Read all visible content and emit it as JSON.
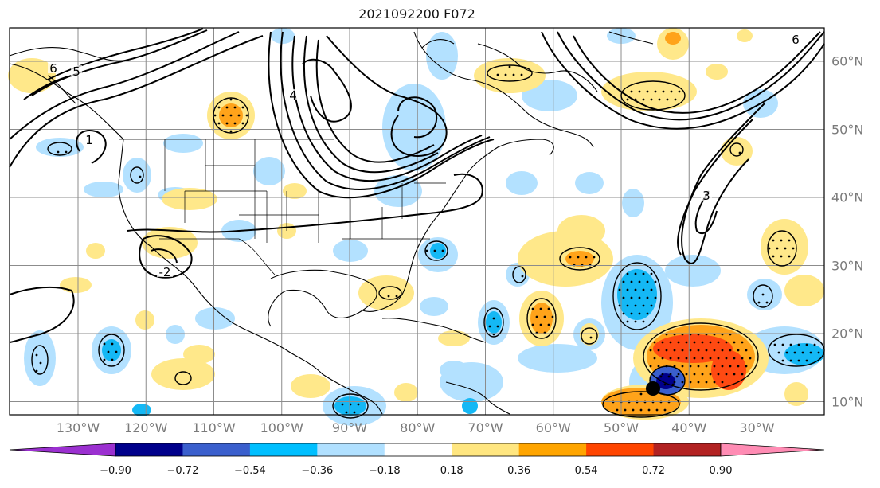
{
  "title": "2021092200 F072",
  "map": {
    "projection": "Plate Carree",
    "extent_lon": [
      -140,
      -20
    ],
    "extent_lat": [
      8,
      65
    ],
    "lon_labels": [
      "130°W",
      "120°W",
      "110°W",
      "100°W",
      "90°W",
      "80°W",
      "70°W",
      "60°W",
      "50°W",
      "40°W",
      "30°W"
    ],
    "lat_labels": [
      "60°N",
      "50°N",
      "40°N",
      "30°N",
      "20°N",
      "10°N"
    ],
    "contour_labels": [
      "6",
      "5",
      "4",
      "3",
      "2",
      "1",
      "-2"
    ],
    "stippling": true,
    "marker": {
      "name": "storm-position-marker",
      "color": "#000000"
    }
  },
  "colorbar": {
    "ticks": [
      "−0.90",
      "−0.72",
      "−0.54",
      "−0.36",
      "−0.18",
      "0.18",
      "0.36",
      "0.54",
      "0.72",
      "0.90"
    ],
    "colors": [
      "#9b30d0",
      "#00008b",
      "#3a5fcd",
      "#00bfff",
      "#b0e0ff",
      "#ffffff",
      "#ffe680",
      "#ffa500",
      "#ff4500",
      "#b22222",
      "#ff8cb4"
    ],
    "extend": "both"
  }
}
